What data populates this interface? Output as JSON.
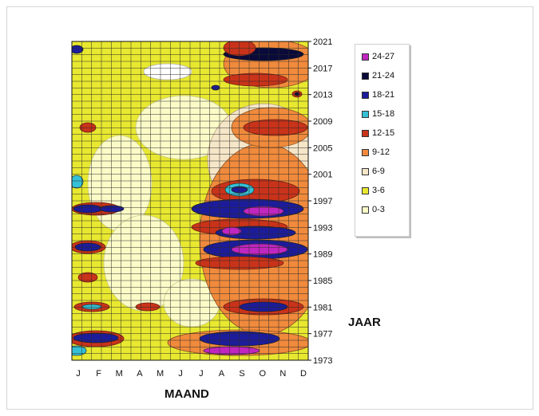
{
  "chart_data": {
    "type": "heatmap",
    "xlabel": "MAAND",
    "ylabel": "JAAR",
    "x_ticks": [
      "J",
      "F",
      "M",
      "A",
      "M",
      "J",
      "J",
      "A",
      "S",
      "O",
      "N",
      "D"
    ],
    "y_ticks": [
      2021,
      2017,
      2013,
      2009,
      2005,
      2001,
      1997,
      1993,
      1989,
      1985,
      1981,
      1977,
      1973
    ],
    "ylim": [
      1973,
      2021
    ],
    "legend_placement": "right",
    "legend": [
      {
        "label": "24-27",
        "color": "#c026c0"
      },
      {
        "label": "21-24",
        "color": "#0a0a3a"
      },
      {
        "label": "18-21",
        "color": "#1c1c9a"
      },
      {
        "label": "15-18",
        "color": "#35c0d6"
      },
      {
        "label": "12-15",
        "color": "#c9331a"
      },
      {
        "label": "9-12",
        "color": "#f08a3c"
      },
      {
        "label": "6-9",
        "color": "#f6e6c8"
      },
      {
        "label": "3-6",
        "color": "#e8e830"
      },
      {
        "label": "0-3",
        "color": "#fbfbc8"
      }
    ],
    "grid": true
  }
}
